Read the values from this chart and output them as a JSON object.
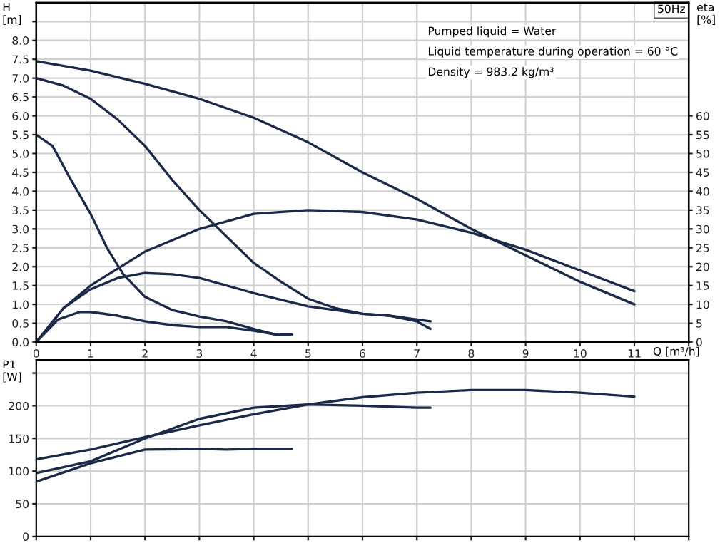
{
  "chart_data": [
    {
      "type": "line",
      "ylabel": "H\n[m]",
      "y2label": "eta\n[%]",
      "xlabel": "Q [m³/h]",
      "annotations": [
        "50Hz",
        "Pumped liquid = Water",
        "Liquid temperature during operation = 60 °C",
        "Density = 983.2 kg/m³"
      ],
      "xlim": [
        0,
        12
      ],
      "xticks": [
        0,
        1,
        2,
        3,
        4,
        5,
        6,
        7,
        8,
        9,
        10,
        11,
        {
          "value": 12,
          "label": null
        }
      ],
      "ylim": [
        0,
        9
      ],
      "yticks": [
        {
          "value": 0,
          "label": "0.0"
        },
        {
          "value": 0.5,
          "label": "0.5"
        },
        {
          "value": 1,
          "label": "1.0"
        },
        {
          "value": 1.5,
          "label": "1.5"
        },
        {
          "value": 2,
          "label": "2.0"
        },
        {
          "value": 2.5,
          "label": "2.5"
        },
        {
          "value": 3,
          "label": "3.0"
        },
        {
          "value": 3.5,
          "label": "3.5"
        },
        {
          "value": 4,
          "label": "4.0"
        },
        {
          "value": 4.5,
          "label": "4.5"
        },
        {
          "value": 5,
          "label": "5.0"
        },
        {
          "value": 5.5,
          "label": "5.5"
        },
        {
          "value": 6,
          "label": "6.0"
        },
        {
          "value": 6.5,
          "label": "6.5"
        },
        {
          "value": 7,
          "label": "7.0"
        },
        {
          "value": 7.5,
          "label": "7.5"
        },
        {
          "value": 8,
          "label": "8.0"
        },
        {
          "value": 8.5,
          "label": null
        }
      ],
      "y2lim": [
        0,
        90
      ],
      "y2ticks": [
        0,
        5,
        10,
        15,
        20,
        25,
        30,
        35,
        40,
        45,
        50,
        55,
        60
      ],
      "grid": true,
      "legend": false,
      "marker": "none",
      "line_style": "solid",
      "series": [
        {
          "color": "#1b2a48",
          "x": [
            0,
            1,
            2,
            3,
            4,
            5,
            6,
            7,
            8,
            9,
            10,
            11
          ],
          "values": [
            7.45,
            7.2,
            6.85,
            6.45,
            5.95,
            5.3,
            4.5,
            3.8,
            3.0,
            2.3,
            1.6,
            1.0
          ]
        },
        {
          "color": "#1b2a48",
          "x": [
            0,
            0.5,
            1,
            1.5,
            2,
            2.5,
            3,
            3.5,
            4,
            4.5,
            5,
            5.5,
            6,
            6.5,
            7,
            7.25
          ],
          "values": [
            7.0,
            6.8,
            6.45,
            5.9,
            5.2,
            4.3,
            3.5,
            2.8,
            2.1,
            1.6,
            1.15,
            0.9,
            0.75,
            0.7,
            0.6,
            0.55
          ]
        },
        {
          "color": "#1b2a48",
          "x": [
            0,
            0.3,
            0.6,
            1,
            1.3,
            1.6,
            2,
            2.5,
            3,
            3.5,
            4,
            4.4,
            4.7
          ],
          "values": [
            5.5,
            5.2,
            4.4,
            3.4,
            2.5,
            1.8,
            1.2,
            0.85,
            0.68,
            0.55,
            0.35,
            0.2,
            0.2
          ]
        },
        {
          "color": "#1b2a48",
          "axis": "y2",
          "x": [
            0,
            0.5,
            1,
            2,
            3,
            4,
            5,
            6,
            7,
            8,
            9,
            10,
            11
          ],
          "values": [
            0,
            9,
            15,
            24,
            30,
            34,
            35,
            34.5,
            32.5,
            29,
            24.5,
            19,
            13.5
          ]
        },
        {
          "color": "#1b2a48",
          "axis": "y2",
          "x": [
            0,
            0.5,
            1,
            1.5,
            2,
            2.5,
            3,
            4,
            5,
            6,
            6.5,
            7,
            7.25
          ],
          "values": [
            0,
            9,
            14,
            17,
            18.3,
            18,
            17,
            13,
            9.5,
            7.5,
            7,
            5.5,
            3.5
          ]
        },
        {
          "color": "#1b2a48",
          "axis": "y2",
          "x": [
            0,
            0.4,
            0.8,
            1,
            1.5,
            2,
            2.5,
            3,
            3.5,
            4,
            4.4,
            4.7
          ],
          "values": [
            0,
            6,
            8,
            8,
            7,
            5.5,
            4.5,
            4,
            4,
            3,
            2,
            2
          ]
        }
      ]
    },
    {
      "type": "line",
      "ylabel": "P1\n[W]",
      "tick_labels": "y",
      "xlim": [
        0,
        12
      ],
      "xticks": [
        0,
        1,
        2,
        3,
        4,
        5,
        6,
        7,
        8,
        9,
        10,
        11,
        12
      ],
      "ylim": [
        0,
        270
      ],
      "yticks": [
        0,
        50,
        100,
        150,
        200,
        {
          "value": 250,
          "label": null
        }
      ],
      "grid": true,
      "legend": false,
      "marker": "none",
      "line_style": "solid",
      "series": [
        {
          "color": "#1b2a48",
          "x": [
            0,
            1,
            2,
            3,
            4,
            5,
            6,
            7,
            8,
            9,
            10,
            11
          ],
          "values": [
            118,
            133,
            152,
            170,
            187,
            202,
            213,
            220,
            224,
            224,
            220,
            214
          ]
        },
        {
          "color": "#1b2a48",
          "x": [
            0,
            1,
            2,
            3,
            4,
            5,
            6,
            7,
            7.25
          ],
          "values": [
            97,
            115,
            150,
            180,
            197,
            202,
            200,
            197,
            197
          ]
        },
        {
          "color": "#1b2a48",
          "x": [
            0,
            1,
            2,
            3,
            3.5,
            4,
            4.7
          ],
          "values": [
            84,
            112,
            133,
            134,
            133,
            134,
            134
          ]
        }
      ]
    }
  ]
}
